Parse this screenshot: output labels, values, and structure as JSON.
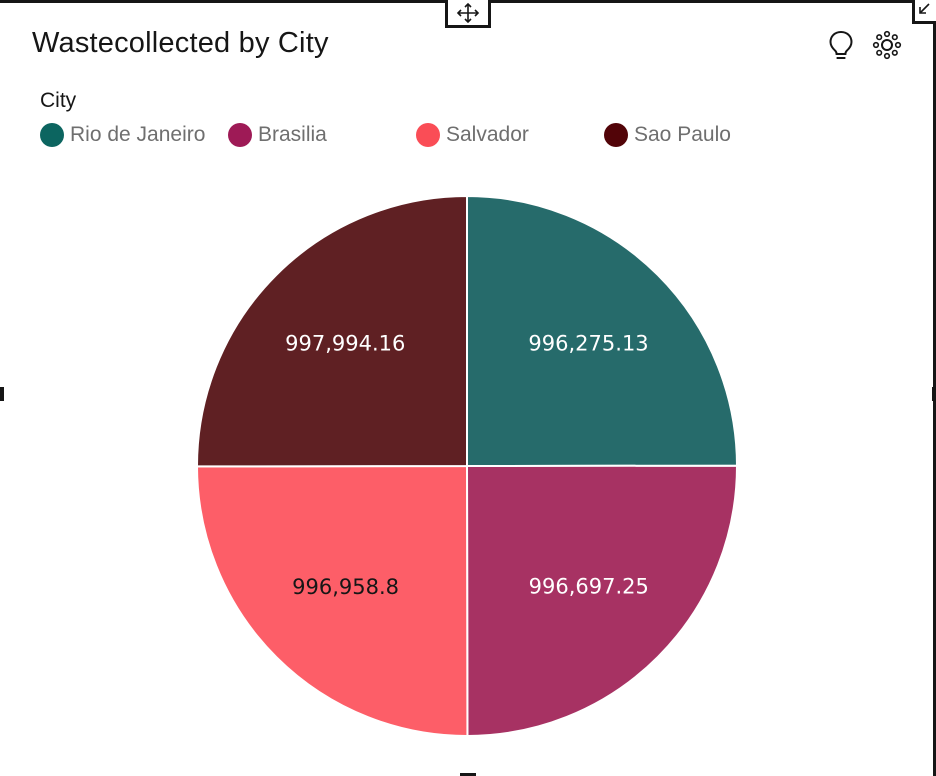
{
  "widget": {
    "title": "Wastecollected by City",
    "icons": {
      "insights": "lightbulb-icon",
      "settings": "settings-icon",
      "move": "move-icon",
      "resize": "resize-icon"
    }
  },
  "chart_data": {
    "type": "pie",
    "title": "Wastecollected by City",
    "legend_title": "City",
    "legend_placement": "top-left",
    "categories": [
      "Rio de Janeiro",
      "Brasilia",
      "Salvador",
      "Sao Paulo"
    ],
    "values": [
      996275.13,
      996697.25,
      996958.8,
      997994.16
    ],
    "value_labels": [
      "996,275.13",
      "996,697.25",
      "996,958.8",
      "997,994.16"
    ],
    "colors": [
      "#266b6b",
      "#a73263",
      "#fd5e68",
      "#5f2023"
    ],
    "legend_colors": [
      "#0c6560",
      "#9e1a56",
      "#fa4d56",
      "#520408"
    ],
    "label_colors": [
      "#ffffff",
      "#ffffff",
      "#161616",
      "#ffffff"
    ]
  }
}
